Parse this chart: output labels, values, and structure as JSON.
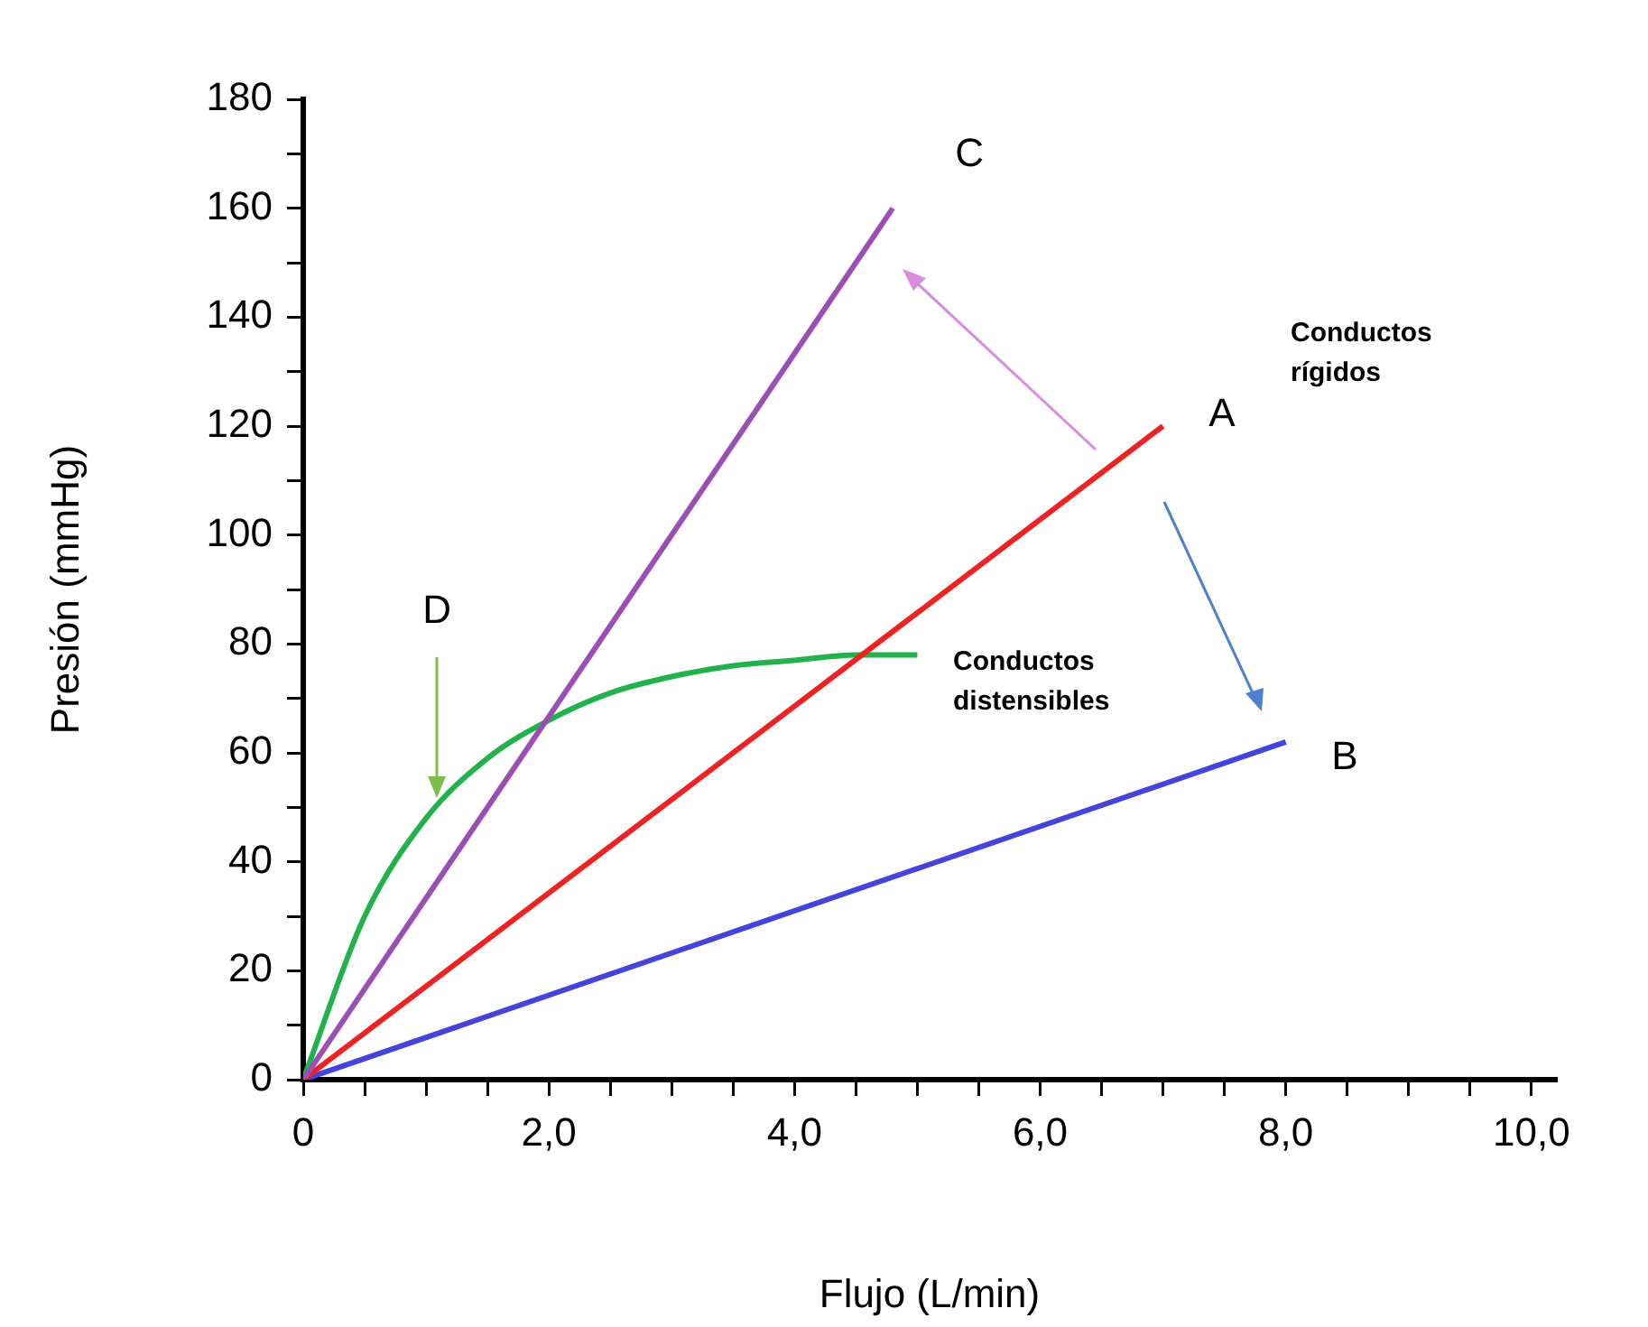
{
  "chart_data": {
    "type": "line",
    "xlabel": "Flujo (L/min)",
    "ylabel": "Presión (mmHg)",
    "xlim": [
      0,
      10.2
    ],
    "ylim": [
      0,
      180
    ],
    "xticks": [
      0,
      {
        "value": 0.5,
        "label": null
      },
      {
        "value": 1,
        "label": null
      },
      {
        "value": 1.5,
        "label": null
      },
      {
        "value": 2,
        "label": "2,0"
      },
      {
        "value": 2.5,
        "label": null
      },
      {
        "value": 3,
        "label": null
      },
      {
        "value": 3.5,
        "label": null
      },
      {
        "value": 4,
        "label": "4,0"
      },
      {
        "value": 4.5,
        "label": null
      },
      {
        "value": 5,
        "label": null
      },
      {
        "value": 5.5,
        "label": null
      },
      {
        "value": 6,
        "label": "6,0"
      },
      {
        "value": 6.5,
        "label": null
      },
      {
        "value": 7,
        "label": null
      },
      {
        "value": 7.5,
        "label": null
      },
      {
        "value": 8,
        "label": "8,0"
      },
      {
        "value": 8.5,
        "label": null
      },
      {
        "value": 9,
        "label": null
      },
      {
        "value": 9.5,
        "label": null
      },
      {
        "value": 10,
        "label": "10,0"
      }
    ],
    "yticks": [
      0,
      {
        "value": 10,
        "label": null
      },
      20,
      {
        "value": 30,
        "label": null
      },
      40,
      {
        "value": 50,
        "label": null
      },
      60,
      {
        "value": 70,
        "label": null
      },
      80,
      {
        "value": 90,
        "label": null
      },
      100,
      {
        "value": 110,
        "label": null
      },
      120,
      {
        "value": 130,
        "label": null
      },
      140,
      {
        "value": 150,
        "label": null
      },
      160,
      {
        "value": 170,
        "label": null
      },
      180
    ],
    "grid": false,
    "legend": false,
    "marker": "none",
    "line_style": "solid",
    "series": [
      {
        "color": "#9b4fb5",
        "x": [
          0,
          4.8
        ],
        "values": [
          0,
          160
        ]
      },
      {
        "color": "#ee2222",
        "x": [
          0,
          7
        ],
        "values": [
          0,
          120
        ]
      },
      {
        "color": "#4444dd",
        "x": [
          0,
          8
        ],
        "values": [
          0,
          62
        ]
      },
      {
        "color": "#22b24c",
        "x": [
          0,
          0.5,
          1,
          1.5,
          2,
          2.5,
          3,
          3.5,
          4,
          4.5,
          5
        ],
        "values": [
          0,
          30,
          48,
          59,
          66,
          71,
          74,
          76,
          77,
          78,
          78
        ]
      }
    ],
    "annotations": [
      "C",
      "A",
      "B",
      "D",
      "Conductos rígidos",
      "Conductos distensibles"
    ]
  }
}
